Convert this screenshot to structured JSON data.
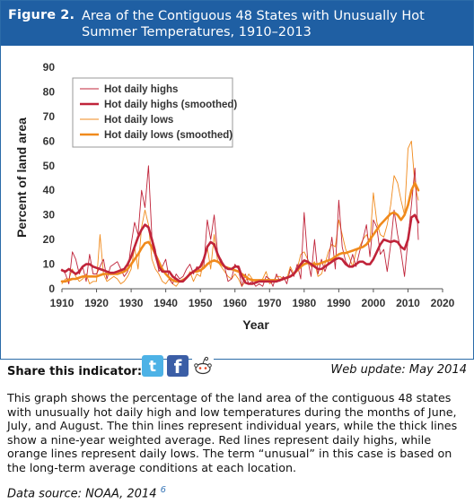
{
  "header": {
    "figure_label": "Figure 2.",
    "title": "Area of the Contiguous 48 States with Unusually Hot Summer Temperatures, 1910–2013"
  },
  "colors": {
    "header_bg": "#1f5fa3",
    "hot_highs": "#c0243a",
    "hot_lows": "#f08a1c"
  },
  "chart_data": {
    "type": "line",
    "title": "",
    "xlabel": "Year",
    "ylabel": "Percent of land area",
    "xlim": [
      1910,
      2020
    ],
    "ylim": [
      0,
      90
    ],
    "xticks": [
      1910,
      1920,
      1930,
      1940,
      1950,
      1960,
      1970,
      1980,
      1990,
      2000,
      2010,
      2020
    ],
    "yticks": [
      0,
      10,
      20,
      30,
      40,
      50,
      60,
      70,
      80,
      90
    ],
    "grid": false,
    "legend_position": "top-left",
    "x": [
      1910,
      1911,
      1912,
      1913,
      1914,
      1915,
      1916,
      1917,
      1918,
      1919,
      1920,
      1921,
      1922,
      1923,
      1924,
      1925,
      1926,
      1927,
      1928,
      1929,
      1930,
      1931,
      1932,
      1933,
      1934,
      1935,
      1936,
      1937,
      1938,
      1939,
      1940,
      1941,
      1942,
      1943,
      1944,
      1945,
      1946,
      1947,
      1948,
      1949,
      1950,
      1951,
      1952,
      1953,
      1954,
      1955,
      1956,
      1957,
      1958,
      1959,
      1960,
      1961,
      1962,
      1963,
      1964,
      1965,
      1966,
      1967,
      1968,
      1969,
      1970,
      1971,
      1972,
      1973,
      1974,
      1975,
      1976,
      1977,
      1978,
      1979,
      1980,
      1981,
      1982,
      1983,
      1984,
      1985,
      1986,
      1987,
      1988,
      1989,
      1990,
      1991,
      1992,
      1993,
      1994,
      1995,
      1996,
      1997,
      1998,
      1999,
      2000,
      2001,
      2002,
      2003,
      2004,
      2005,
      2006,
      2007,
      2008,
      2009,
      2010,
      2011,
      2012,
      2013
    ],
    "series": [
      {
        "name": "Hot daily highs",
        "style": "thin",
        "color": "#c0243a",
        "values": [
          8,
          6,
          2,
          15,
          12,
          6,
          9,
          3,
          14,
          6,
          6,
          9,
          12,
          4,
          9,
          10,
          11,
          8,
          5,
          7,
          18,
          27,
          22,
          40,
          33,
          50,
          21,
          16,
          7,
          9,
          12,
          4,
          2,
          6,
          4,
          5,
          8,
          10,
          6,
          9,
          7,
          9,
          28,
          20,
          30,
          14,
          12,
          9,
          3,
          4,
          10,
          8,
          1,
          6,
          2,
          3,
          1,
          2,
          1,
          5,
          4,
          1,
          6,
          3,
          5,
          2,
          8,
          5,
          10,
          4,
          31,
          12,
          5,
          20,
          6,
          12,
          7,
          11,
          21,
          8,
          36,
          17,
          11,
          9,
          14,
          9,
          15,
          20,
          26,
          13,
          28,
          25,
          14,
          16,
          7,
          18,
          32,
          22,
          15,
          5,
          20,
          34,
          49,
          20
        ]
      },
      {
        "name": "Hot daily highs (smoothed)",
        "style": "thick",
        "color": "#c0243a",
        "values": [
          7.5,
          7,
          8,
          7,
          6,
          7,
          9,
          10,
          10,
          9,
          8.5,
          8,
          7.5,
          7,
          6.5,
          6.5,
          7,
          7.5,
          8,
          10,
          13,
          17,
          21,
          24,
          26,
          25,
          20,
          14,
          9,
          7,
          7,
          7,
          5,
          4,
          3,
          3,
          4.5,
          6,
          7,
          8,
          9,
          12,
          17,
          19,
          18,
          14,
          11,
          9,
          8,
          8,
          9,
          9,
          5,
          2.5,
          2,
          2,
          2.5,
          3,
          3,
          3,
          3,
          3,
          3,
          3.5,
          4,
          4.5,
          5,
          6,
          8,
          10,
          11.5,
          11,
          10,
          9,
          8,
          8,
          9,
          10,
          11,
          12,
          12.5,
          12,
          10,
          9,
          9,
          10,
          11,
          11,
          10,
          10,
          12,
          15,
          18,
          20,
          19.5,
          19,
          19.5,
          19,
          17,
          16,
          20,
          29,
          30,
          27
        ]
      },
      {
        "name": "Hot daily lows",
        "style": "thin",
        "color": "#f08a1c",
        "values": [
          2,
          4,
          4,
          8,
          5,
          3,
          4,
          6,
          2,
          3,
          3,
          22,
          6,
          3,
          4,
          5,
          4,
          2,
          3,
          5,
          8,
          17,
          8,
          25,
          32,
          26,
          12,
          8,
          6,
          3,
          2,
          4,
          2,
          1,
          3,
          4,
          4,
          7,
          3,
          6,
          5,
          12,
          17,
          8,
          22,
          11,
          9,
          7,
          5,
          4,
          6,
          4,
          1,
          3,
          6,
          4,
          3,
          3,
          4,
          7,
          2,
          3,
          5,
          5,
          4,
          4,
          9,
          6,
          8,
          14,
          15,
          12,
          9,
          11,
          5,
          6,
          10,
          15,
          18,
          17,
          28,
          22,
          16,
          13,
          9,
          15,
          17,
          20,
          22,
          19,
          39,
          27,
          22,
          21,
          26,
          34,
          46,
          43,
          36,
          30,
          57,
          60,
          42,
          36
        ]
      },
      {
        "name": "Hot daily lows (smoothed)",
        "style": "thick",
        "color": "#f08a1c",
        "values": [
          3,
          3,
          3.5,
          4,
          4,
          4.5,
          5,
          5,
          5,
          5,
          5,
          5.5,
          6,
          6,
          6,
          6,
          6,
          6.5,
          7,
          8,
          10,
          12,
          14,
          16.5,
          18.5,
          19,
          17,
          14,
          11,
          8,
          6,
          4.5,
          3.5,
          3,
          3,
          3.5,
          4.5,
          6,
          7,
          7,
          7.5,
          8.5,
          10,
          11,
          11.5,
          11,
          10,
          9,
          8.5,
          8,
          7.5,
          7,
          6,
          5,
          4,
          3.5,
          3.5,
          3.5,
          3.5,
          3.5,
          3.5,
          3.5,
          3.5,
          3.5,
          4,
          4.5,
          5,
          6,
          7.5,
          9,
          10,
          10.5,
          10,
          10,
          10,
          10.5,
          11,
          11.5,
          12,
          13,
          14,
          14.5,
          14.5,
          15,
          15.5,
          16,
          16.5,
          17,
          18,
          20,
          22,
          24,
          26,
          27.5,
          29,
          30.5,
          31,
          30,
          28,
          30,
          34,
          40,
          43,
          40
        ]
      }
    ]
  },
  "share": {
    "label": "Share this indicator:",
    "icons": [
      "twitter-icon",
      "facebook-icon",
      "reddit-icon"
    ],
    "twitter_glyph": "t",
    "facebook_glyph": "f"
  },
  "web_update": "Web update: May 2014",
  "description": "This graph shows the percentage of the land area of the contiguous 48 states with unusually hot daily high and low temperatures during the months of June, July, and August. The thin lines represent individual years, while the thick lines show a nine-year weighted average. Red lines represent daily highs, while orange lines represent daily lows. The term “unusual” in this case is based on the long-term average conditions at each location.",
  "source": {
    "text": "Data source: NOAA, 2014",
    "ref": "6"
  }
}
